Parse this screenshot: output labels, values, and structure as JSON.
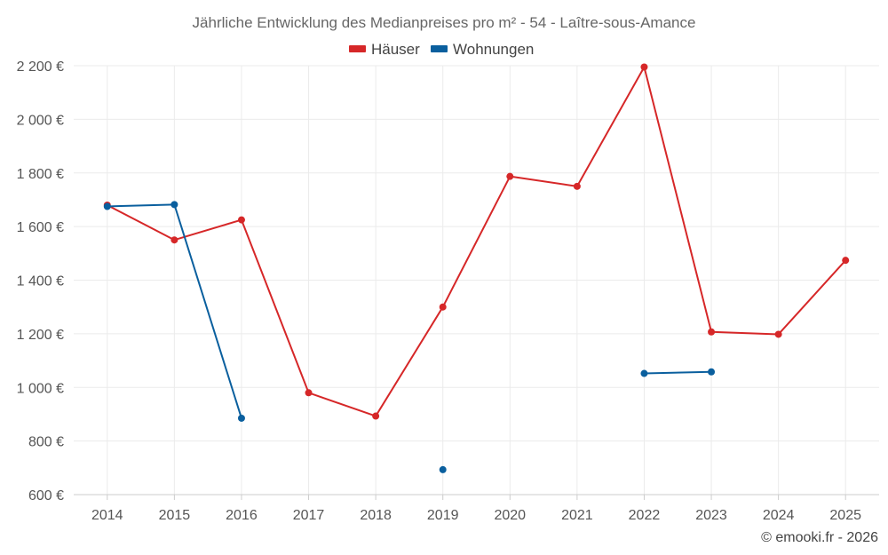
{
  "chart_data": {
    "type": "line",
    "title": "Jährliche Entwicklung des Medianpreises pro m² - 54 - Laître-sous-Amance",
    "categories": [
      "2014",
      "2015",
      "2016",
      "2017",
      "2018",
      "2019",
      "2020",
      "2021",
      "2022",
      "2023",
      "2024",
      "2025"
    ],
    "ylim": [
      600,
      2200
    ],
    "yticks": [
      600,
      800,
      1000,
      1200,
      1400,
      1600,
      1800,
      2000,
      2200
    ],
    "ytick_labels": [
      "600 €",
      "800 €",
      "1 000 €",
      "1 200 €",
      "1 400 €",
      "1 600 €",
      "1 800 €",
      "2 000 €",
      "2 200 €"
    ],
    "grid": true,
    "legend_position": "top-center",
    "series": [
      {
        "name": "Häuser",
        "color": "#d62728",
        "values": [
          1680,
          1550,
          1625,
          980,
          893,
          1300,
          1787,
          1750,
          2195,
          1207,
          1198,
          1474
        ]
      },
      {
        "name": "Wohnungen",
        "color": "#0a5f9e",
        "values": [
          1675,
          1682,
          885,
          null,
          null,
          693,
          null,
          null,
          1052,
          1058,
          null,
          null
        ]
      }
    ],
    "credit": "© emooki.fr - 2026"
  }
}
